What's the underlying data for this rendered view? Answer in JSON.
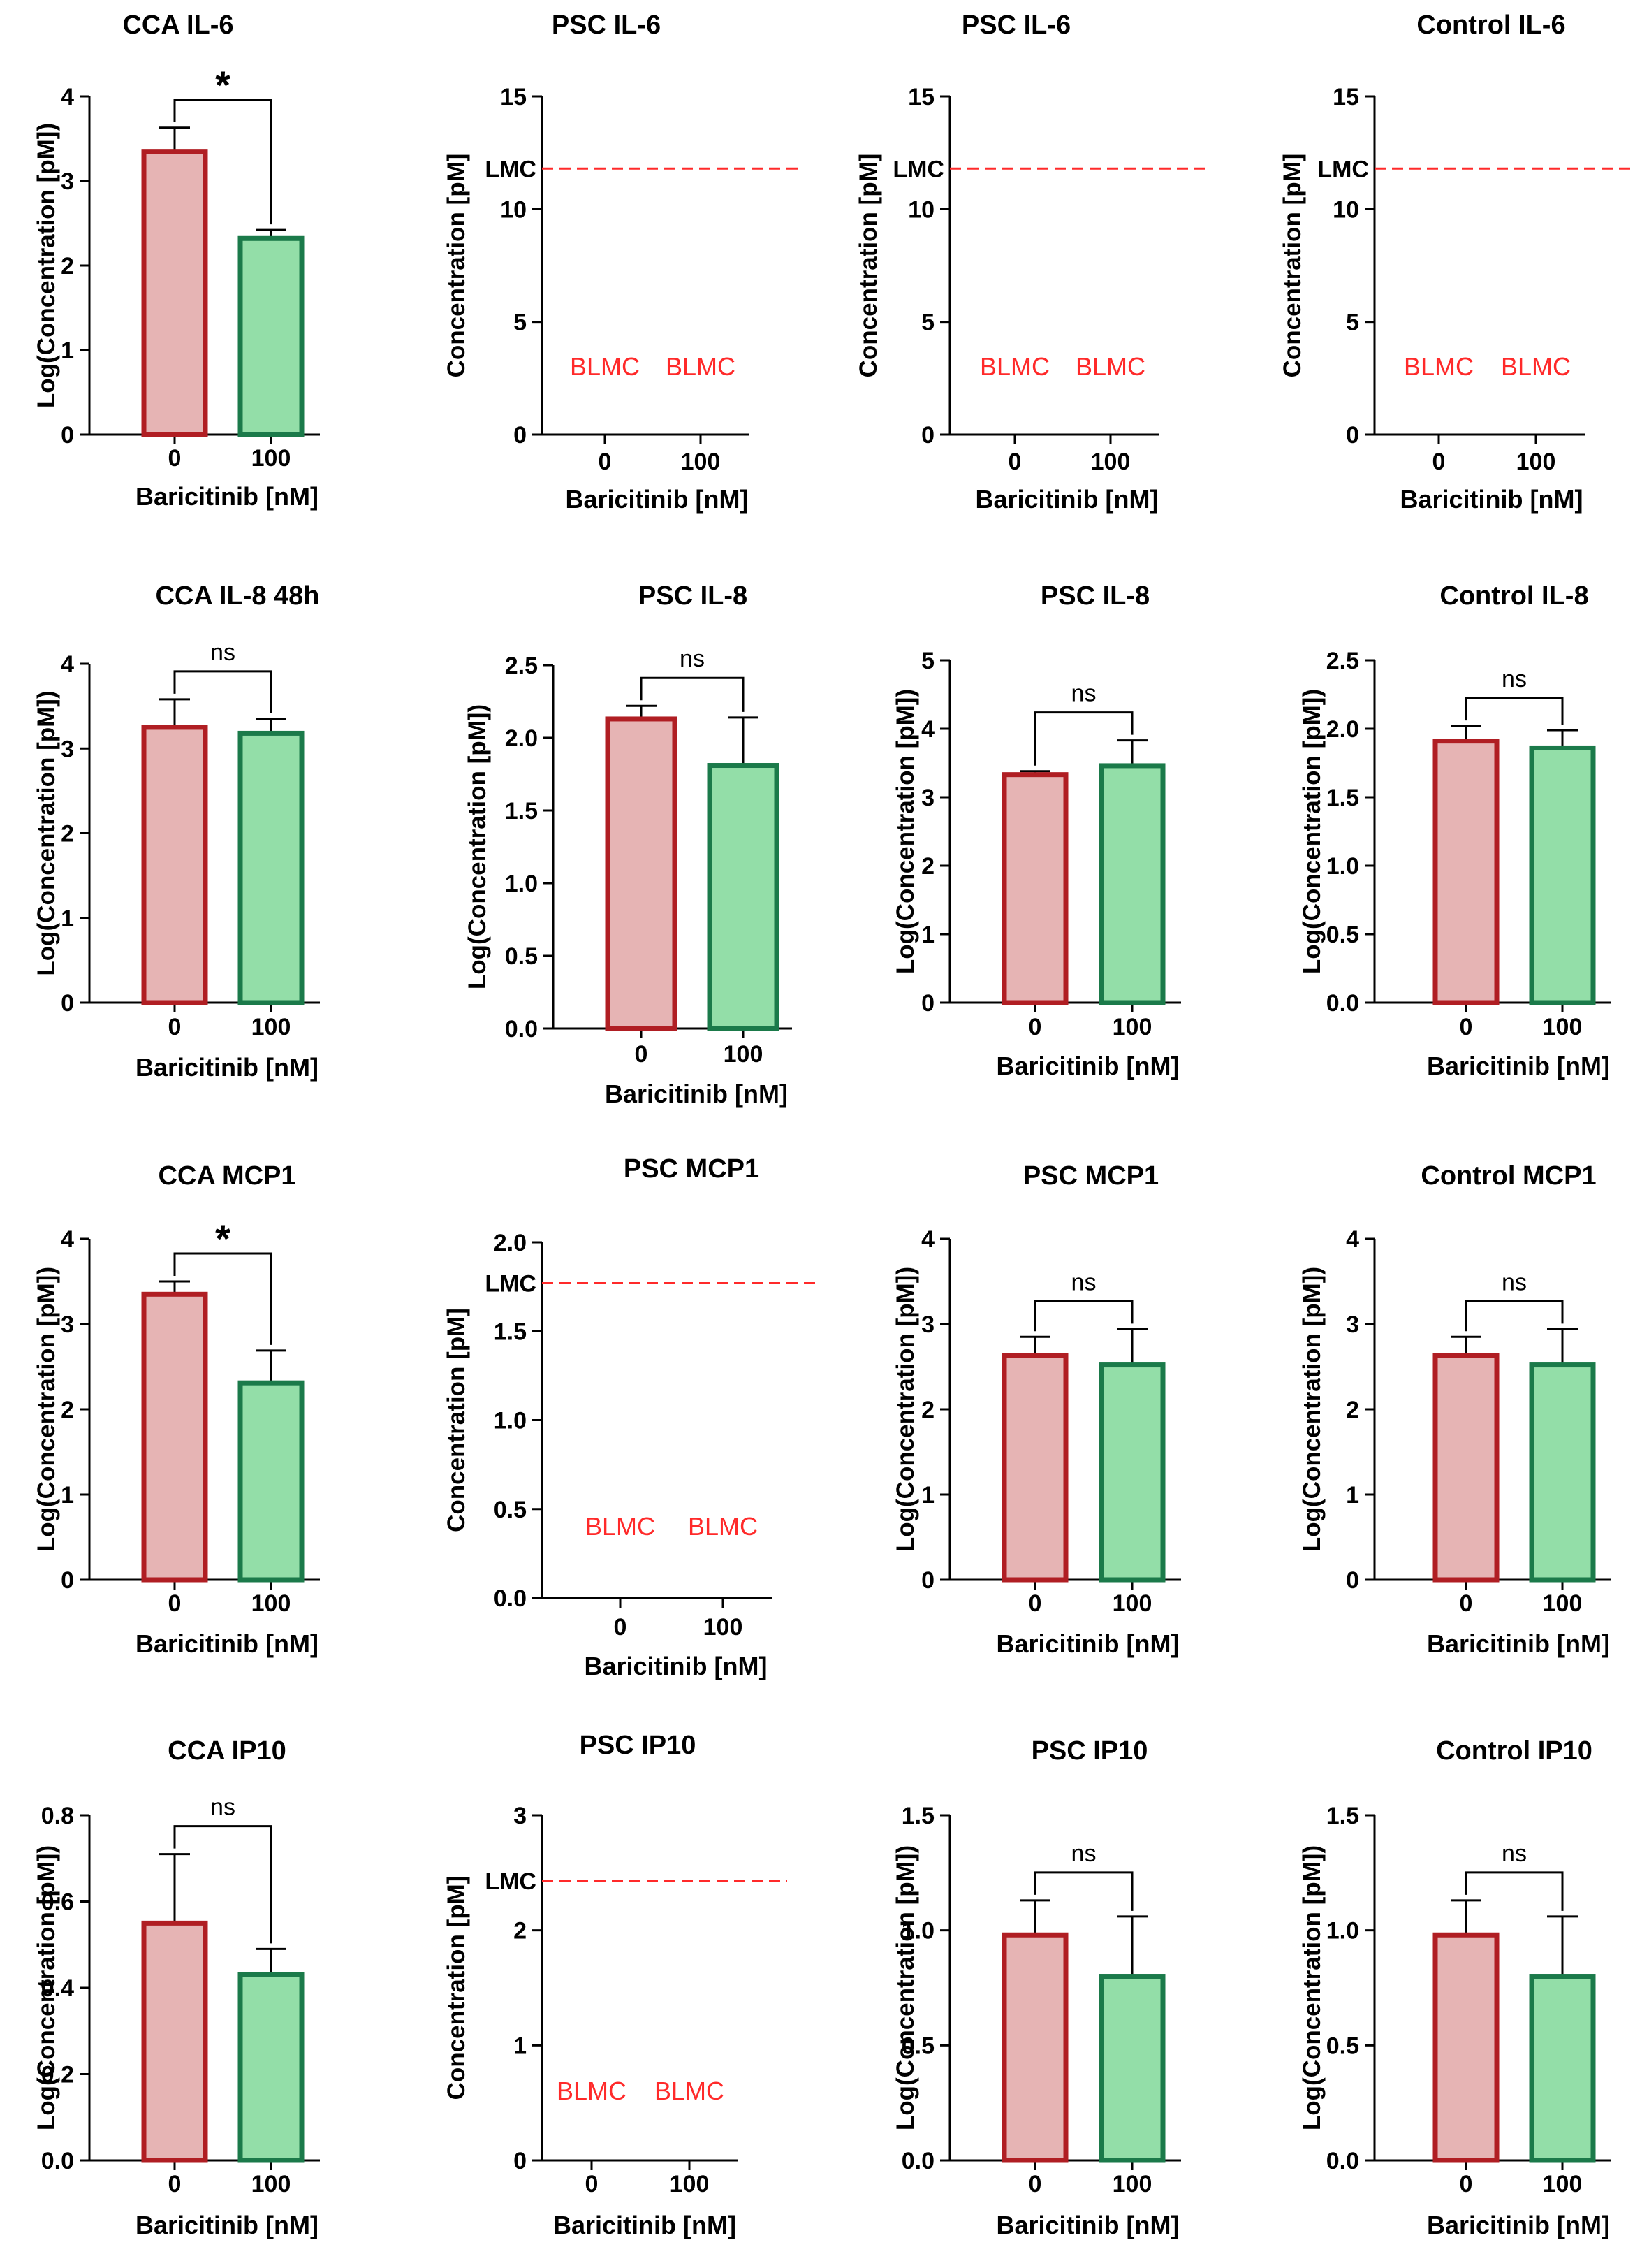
{
  "figure": {
    "x_axis_label": "Baricitinib  [nM]",
    "categories": [
      "0",
      "100"
    ],
    "colors": {
      "bar0_fill": "#e6b4b4",
      "bar0_stroke": "#b01e23",
      "bar1_fill": "#93dea8",
      "bar1_stroke": "#1b7a4a",
      "limit_line": "#ff2a2a",
      "axis": "#000000"
    }
  },
  "chart_data": [
    {
      "type": "bar",
      "title": "CCA IL-6",
      "ylabel": "Log(Concentration [pM])",
      "xlabel": "Baricitinib [nM]",
      "categories": [
        "0",
        "100"
      ],
      "ylim": [
        0,
        4
      ],
      "yticks": [
        "0",
        "1",
        "2",
        "3",
        "4"
      ],
      "values": [
        3.35,
        2.32
      ],
      "errors": [
        0.28,
        0.1
      ],
      "significance": "*"
    },
    {
      "type": "bar",
      "title": "PSC IL-6",
      "ylabel": "Concentration [pM]",
      "xlabel": "Baricitinib  [nM]",
      "categories": [
        "0",
        "100"
      ],
      "ylim": [
        0,
        15
      ],
      "yticks": [
        "0",
        "5",
        "10",
        "15"
      ],
      "reference_line": {
        "label": "LMC",
        "value": 11.8
      },
      "below_limit_labels": [
        "BLMC",
        "BLMC"
      ],
      "below_limit_y": 3
    },
    {
      "type": "bar",
      "title": "PSC IL-6",
      "ylabel": "Concentration [pM]",
      "xlabel": "Baricitinib  [nM]",
      "categories": [
        "0",
        "100"
      ],
      "ylim": [
        0,
        15
      ],
      "yticks": [
        "0",
        "5",
        "10",
        "15"
      ],
      "reference_line": {
        "label": "LMC",
        "value": 11.8
      },
      "below_limit_labels": [
        "BLMC",
        "BLMC"
      ],
      "below_limit_y": 3
    },
    {
      "type": "bar",
      "title": "Control IL-6",
      "ylabel": "Concentration [pM]",
      "xlabel": "Baricitinib  [nM]",
      "categories": [
        "0",
        "100"
      ],
      "ylim": [
        0,
        15
      ],
      "yticks": [
        "0",
        "5",
        "10",
        "15"
      ],
      "reference_line": {
        "label": "LMC",
        "value": 11.8
      },
      "below_limit_labels": [
        "BLMC",
        "BLMC"
      ],
      "below_limit_y": 3
    },
    {
      "type": "bar",
      "title": "CCA IL-8 48h",
      "ylabel": "Log(Concentration [pM])",
      "xlabel": "Baricitinib [nM]",
      "categories": [
        "0",
        "100"
      ],
      "ylim": [
        0,
        4
      ],
      "yticks": [
        "0",
        "1",
        "2",
        "3",
        "4"
      ],
      "values": [
        3.25,
        3.18
      ],
      "errors": [
        0.33,
        0.17
      ],
      "significance": "ns"
    },
    {
      "type": "bar",
      "title": "PSC IL-8",
      "ylabel": "Log(Concentration [pM])",
      "xlabel": "Baricitinib  [nM]",
      "categories": [
        "0",
        "100"
      ],
      "ylim": [
        0,
        2.5
      ],
      "yticks": [
        "0.0",
        "0.5",
        "1.0",
        "1.5",
        "2.0",
        "2.5"
      ],
      "values": [
        2.13,
        1.81
      ],
      "errors": [
        0.09,
        0.33
      ],
      "significance": "ns"
    },
    {
      "type": "bar",
      "title": "PSC IL-8",
      "ylabel": "Log(Concentration [pM])",
      "xlabel": "Baricitinib  [nM]",
      "categories": [
        "0",
        "100"
      ],
      "ylim": [
        0,
        5
      ],
      "yticks": [
        "0",
        "1",
        "2",
        "3",
        "4",
        "5"
      ],
      "values": [
        3.33,
        3.46
      ],
      "errors": [
        0.05,
        0.37
      ],
      "significance": "ns"
    },
    {
      "type": "bar",
      "title": "Control IL-8",
      "ylabel": "Log(Concentration [pM])",
      "xlabel": "Baricitinib  [nM]",
      "categories": [
        "0",
        "100"
      ],
      "ylim": [
        0,
        2.5
      ],
      "yticks": [
        "0.0",
        "0.5",
        "1.0",
        "1.5",
        "2.0",
        "2.5"
      ],
      "values": [
        1.91,
        1.86
      ],
      "errors": [
        0.11,
        0.13
      ],
      "significance": "ns"
    },
    {
      "type": "bar",
      "title": "CCA MCP1",
      "ylabel": "Log(Concentration [pM])",
      "xlabel": "Baricitinib  [nM]",
      "categories": [
        "0",
        "100"
      ],
      "ylim": [
        0,
        4
      ],
      "yticks": [
        "0",
        "1",
        "2",
        "3",
        "4"
      ],
      "values": [
        3.35,
        2.31
      ],
      "errors": [
        0.15,
        0.38
      ],
      "significance": "*"
    },
    {
      "type": "bar",
      "title": "PSC MCP1",
      "ylabel": "Concentration [pM]",
      "xlabel": "Baricitinib  [nM]",
      "categories": [
        "0",
        "100"
      ],
      "ylim": [
        0,
        2
      ],
      "yticks": [
        "0.0",
        "0.5",
        "1.0",
        "1.5",
        "2.0"
      ],
      "reference_line": {
        "label": "LMC",
        "value": 1.77
      },
      "below_limit_labels": [
        "BLMC",
        "BLMC"
      ],
      "below_limit_y": 0.4
    },
    {
      "type": "bar",
      "title": "PSC MCP1",
      "ylabel": "Log(Concentration [pM])",
      "xlabel": "Baricitinib  [nM]",
      "categories": [
        "0",
        "100"
      ],
      "ylim": [
        0,
        4
      ],
      "yticks": [
        "0",
        "1",
        "2",
        "3",
        "4"
      ],
      "values": [
        2.63,
        2.52
      ],
      "errors": [
        0.22,
        0.42
      ],
      "significance": "ns"
    },
    {
      "type": "bar",
      "title": "Control MCP1",
      "ylabel": "Log(Concentration [pM])",
      "xlabel": "Baricitinib  [nM]",
      "categories": [
        "0",
        "100"
      ],
      "ylim": [
        0,
        4
      ],
      "yticks": [
        "0",
        "1",
        "2",
        "3",
        "4"
      ],
      "values": [
        2.63,
        2.52
      ],
      "errors": [
        0.22,
        0.42
      ],
      "significance": "ns"
    },
    {
      "type": "bar",
      "title": "CCA IP10",
      "ylabel": "Log(Concentration [pM])",
      "xlabel": "Baricitinib  [nM]",
      "categories": [
        "0",
        "100"
      ],
      "ylim": [
        0,
        0.8
      ],
      "yticks": [
        "0.0",
        "0.2",
        "0.4",
        "0.6",
        "0.8"
      ],
      "values": [
        0.55,
        0.43
      ],
      "errors": [
        0.16,
        0.06
      ],
      "significance": "ns"
    },
    {
      "type": "bar",
      "title": "PSC IP10",
      "ylabel": "Concentration [pM]",
      "xlabel": "Baricitinib  [nM]",
      "categories": [
        "0",
        "100"
      ],
      "ylim": [
        0,
        3
      ],
      "yticks": [
        "0",
        "1",
        "2",
        "3"
      ],
      "reference_line": {
        "label": "LMC",
        "value": 2.43
      },
      "below_limit_labels": [
        "BLMC",
        "BLMC"
      ],
      "below_limit_y": 0.6
    },
    {
      "type": "bar",
      "title": "PSC IP10",
      "ylabel": "Log(Concentration [pM])",
      "xlabel": "Baricitinib  [nM]",
      "categories": [
        "0",
        "100"
      ],
      "ylim": [
        0,
        1.5
      ],
      "yticks": [
        "0.0",
        "0.5",
        "1.0",
        "1.5"
      ],
      "values": [
        0.98,
        0.8
      ],
      "errors": [
        0.15,
        0.26
      ],
      "significance": "ns"
    },
    {
      "type": "bar",
      "title": "Control IP10",
      "ylabel": "Log(Concentration [pM])",
      "xlabel": "Baricitinib  [nM]",
      "categories": [
        "0",
        "100"
      ],
      "ylim": [
        0,
        1.5
      ],
      "yticks": [
        "0.0",
        "0.5",
        "1.0",
        "1.5"
      ],
      "values": [
        0.98,
        0.8
      ],
      "errors": [
        0.15,
        0.26
      ],
      "significance": "ns"
    }
  ]
}
